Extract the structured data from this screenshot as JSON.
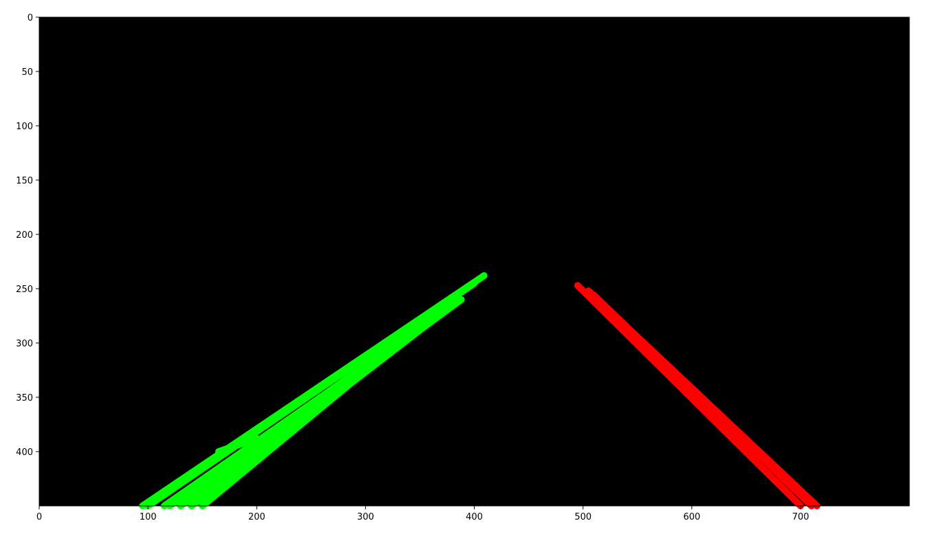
{
  "chart_data": {
    "type": "image",
    "title": "",
    "xlabel": "",
    "ylabel": "",
    "xlim": [
      0,
      800
    ],
    "ylim": [
      450,
      0
    ],
    "y_inverted": true,
    "grid": false,
    "legend": "none",
    "background_color": "#000000",
    "x_ticks": [
      0,
      100,
      200,
      300,
      400,
      500,
      600,
      700
    ],
    "x_tick_labels": [
      "0",
      "100",
      "200",
      "300",
      "400",
      "500",
      "600",
      "700"
    ],
    "y_ticks": [
      0,
      50,
      100,
      150,
      200,
      250,
      300,
      350,
      400
    ],
    "y_tick_labels": [
      "0",
      "50",
      "100",
      "150",
      "200",
      "250",
      "300",
      "350",
      "400"
    ],
    "series": [
      {
        "color": "#00ff00",
        "segments": [
          [
            [
              95,
              450
            ],
            [
              409,
              238
            ]
          ],
          [
            [
              100,
              450
            ],
            [
              400,
              245
            ]
          ],
          [
            [
              115,
              450
            ],
            [
              385,
              262
            ]
          ],
          [
            [
              130,
              450
            ],
            [
              388,
              260
            ]
          ],
          [
            [
              150,
              450
            ],
            [
              365,
              272
            ]
          ],
          [
            [
              120,
              450
            ],
            [
              370,
              270
            ]
          ],
          [
            [
              140,
              450
            ],
            [
              380,
              265
            ]
          ],
          [
            [
              165,
              400
            ],
            [
              200,
              388
            ]
          ],
          [
            [
              180,
              420
            ],
            [
              210,
              395
            ]
          ]
        ]
      },
      {
        "color": "#ff0000",
        "segments": [
          [
            [
              495,
              247
            ],
            [
              700,
              450
            ]
          ],
          [
            [
              505,
              252
            ],
            [
              715,
              450
            ]
          ],
          [
            [
              510,
              256
            ],
            [
              710,
              450
            ]
          ]
        ]
      }
    ]
  }
}
